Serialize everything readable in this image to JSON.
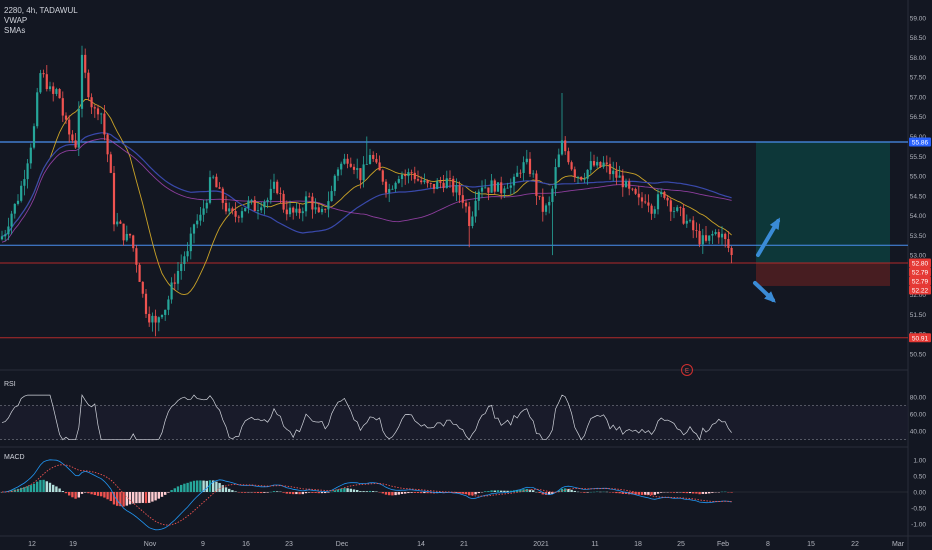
{
  "legend": {
    "symbol_line": "2280, 4h, TADAWUL",
    "vwap_label": "VWAP",
    "sma_label": "SMAs"
  },
  "panes": {
    "rsi_label": "RSI",
    "macd_label": "MACD",
    "earnings_marker": "E"
  },
  "colors": {
    "background": "#131722",
    "up": "#26a69a",
    "down": "#ef5350",
    "level_line": "#2962ff",
    "support_line": "#f44336",
    "vwap": "#ab47bc",
    "sma_fast": "#c9a227",
    "sma_slow": "#3949ab",
    "target_zone": "#0d3b3c",
    "stop_zone": "#4a1e22",
    "arrow": "#3a8bd6",
    "rsi": "#d1d4dc",
    "macd_line": "#2196f3",
    "signal_line": "#ef5350"
  },
  "chart_data": {
    "type": "candlestick",
    "price_axis": {
      "ylim": [
        50.5,
        59.3
      ],
      "ticks": [
        "59.00",
        "58.50",
        "58.00",
        "57.50",
        "57.00",
        "56.50",
        "56.00",
        "55.50",
        "55.00",
        "54.50",
        "54.00",
        "53.50",
        "53.00",
        "52.50",
        "52.00",
        "51.50",
        "51.00",
        "50.50"
      ]
    },
    "x_ticks": [
      "12",
      "19",
      "Nov",
      "9",
      "16",
      "23",
      "Dec",
      "14",
      "21",
      "2021",
      "11",
      "18",
      "25",
      "Feb",
      "8",
      "15",
      "22",
      "Mar"
    ],
    "price_labels": [
      {
        "text": "55.86",
        "value": 55.86,
        "kind": "level"
      },
      {
        "text": "52.80",
        "value": 52.8,
        "kind": "price"
      },
      {
        "text": "52.79",
        "value": 52.79,
        "kind": "price"
      },
      {
        "text": "52.79",
        "value": 52.79,
        "kind": "price"
      },
      {
        "text": "52.22",
        "value": 52.22,
        "kind": "price"
      },
      {
        "text": "50.91",
        "value": 50.91,
        "kind": "level"
      }
    ],
    "horizontal_levels": {
      "resistance": 55.86,
      "support": 53.25,
      "breakdown": 52.8,
      "low": 50.91
    },
    "position_box": {
      "entry": 52.8,
      "target": 55.86,
      "stop": 52.22
    },
    "rsi_axis": {
      "ylim": [
        25,
        95
      ],
      "ticks": [
        "80.00",
        "60.00",
        "40.00"
      ],
      "bands": [
        70,
        30
      ]
    },
    "macd_axis": {
      "ylim": [
        -1.25,
        1.25
      ],
      "ticks": [
        "1.00",
        "0.50",
        "0.00",
        "-0.50",
        "-1.00"
      ]
    },
    "close_anchors": [
      [
        0,
        53.4
      ],
      [
        5,
        53.6
      ],
      [
        10,
        54.0
      ],
      [
        16,
        54.3
      ],
      [
        22,
        54.8
      ],
      [
        28,
        55.5
      ],
      [
        34,
        56.2
      ],
      [
        40,
        57.6
      ],
      [
        46,
        57.4
      ],
      [
        52,
        57.0
      ],
      [
        58,
        57.2
      ],
      [
        64,
        56.4
      ],
      [
        70,
        56.0
      ],
      [
        76,
        55.8
      ],
      [
        82,
        57.9
      ],
      [
        88,
        57.2
      ],
      [
        94,
        56.6
      ],
      [
        100,
        56.8
      ],
      [
        106,
        55.8
      ],
      [
        110,
        55.2
      ],
      [
        114,
        53.9
      ],
      [
        120,
        53.7
      ],
      [
        126,
        53.4
      ],
      [
        130,
        53.5
      ],
      [
        136,
        52.9
      ],
      [
        140,
        52.4
      ],
      [
        144,
        51.8
      ],
      [
        148,
        51.5
      ],
      [
        152,
        51.4
      ],
      [
        156,
        51.2
      ],
      [
        160,
        51.6
      ],
      [
        166,
        51.7
      ],
      [
        172,
        52.2
      ],
      [
        176,
        52.5
      ],
      [
        180,
        52.7
      ],
      [
        184,
        53.0
      ],
      [
        188,
        53.0
      ],
      [
        194,
        53.8
      ],
      [
        200,
        53.9
      ],
      [
        206,
        54.4
      ],
      [
        212,
        55.0
      ],
      [
        218,
        54.6
      ],
      [
        224,
        54.3
      ],
      [
        230,
        54.0
      ],
      [
        236,
        54.0
      ],
      [
        242,
        54.2
      ],
      [
        248,
        54.3
      ],
      [
        256,
        54.2
      ],
      [
        262,
        54.4
      ],
      [
        268,
        54.4
      ],
      [
        276,
        54.8
      ],
      [
        284,
        54.2
      ],
      [
        290,
        54.1
      ],
      [
        296,
        54.0
      ],
      [
        302,
        54.2
      ],
      [
        308,
        54.5
      ],
      [
        314,
        54.2
      ],
      [
        320,
        53.9
      ],
      [
        326,
        54.3
      ],
      [
        332,
        54.6
      ],
      [
        336,
        55.2
      ],
      [
        342,
        55.3
      ],
      [
        348,
        55.5
      ],
      [
        354,
        55.3
      ],
      [
        360,
        55.0
      ],
      [
        366,
        55.2
      ],
      [
        370,
        55.6
      ],
      [
        376,
        55.2
      ],
      [
        382,
        55.0
      ],
      [
        388,
        54.6
      ],
      [
        394,
        54.9
      ],
      [
        400,
        55.1
      ],
      [
        406,
        55.0
      ],
      [
        412,
        55.1
      ],
      [
        418,
        54.9
      ],
      [
        424,
        54.8
      ],
      [
        430,
        54.7
      ],
      [
        438,
        54.8
      ],
      [
        446,
        54.9
      ],
      [
        452,
        54.7
      ],
      [
        458,
        54.6
      ],
      [
        464,
        54.4
      ],
      [
        470,
        53.8
      ],
      [
        476,
        54.6
      ],
      [
        482,
        54.8
      ],
      [
        488,
        54.7
      ],
      [
        494,
        54.8
      ],
      [
        500,
        54.6
      ],
      [
        506,
        54.9
      ],
      [
        512,
        54.7
      ],
      [
        520,
        55.2
      ],
      [
        526,
        55.3
      ],
      [
        532,
        55.1
      ],
      [
        538,
        54.4
      ],
      [
        544,
        54.1
      ],
      [
        550,
        54.3
      ],
      [
        556,
        55.2
      ],
      [
        562,
        55.8
      ],
      [
        568,
        55.5
      ],
      [
        574,
        55.1
      ],
      [
        580,
        55.0
      ],
      [
        586,
        55.1
      ],
      [
        592,
        55.3
      ],
      [
        598,
        55.2
      ],
      [
        604,
        55.3
      ],
      [
        610,
        55.1
      ],
      [
        616,
        55.0
      ],
      [
        622,
        54.9
      ],
      [
        628,
        54.6
      ],
      [
        634,
        54.5
      ],
      [
        640,
        54.3
      ],
      [
        646,
        54.5
      ],
      [
        652,
        54.2
      ],
      [
        658,
        54.4
      ],
      [
        664,
        54.6
      ],
      [
        670,
        54.3
      ],
      [
        676,
        54.1
      ],
      [
        682,
        54.0
      ],
      [
        688,
        53.8
      ],
      [
        694,
        53.6
      ],
      [
        700,
        53.4
      ],
      [
        706,
        53.3
      ],
      [
        712,
        53.5
      ],
      [
        718,
        53.6
      ],
      [
        724,
        53.4
      ],
      [
        730,
        53.1
      ],
      [
        734,
        52.8
      ]
    ],
    "spikes": [
      {
        "x": 562,
        "high": 57.1
      },
      {
        "x": 366,
        "high": 56.0
      },
      {
        "x": 468,
        "low": 53.2
      },
      {
        "x": 552,
        "low": 53.0
      },
      {
        "x": 156,
        "low": 50.95
      }
    ]
  }
}
